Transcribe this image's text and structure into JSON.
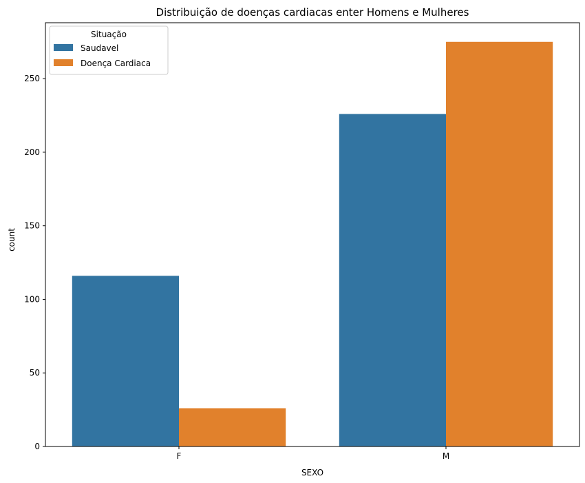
{
  "chart_data": {
    "type": "bar",
    "title": "Distribuição de doenças cardiacas enter Homens e Mulheres",
    "xlabel": "SEXO",
    "ylabel": "count",
    "categories": [
      "F",
      "M"
    ],
    "series": [
      {
        "name": "Saudavel",
        "values": [
          116,
          226
        ],
        "color": "#3274a1"
      },
      {
        "name": "Doença Cardiaca",
        "values": [
          26,
          275
        ],
        "color": "#e1812c"
      }
    ],
    "ylim": [
      0,
      288
    ],
    "yticks": [
      0,
      50,
      100,
      150,
      200,
      250
    ],
    "grid": false,
    "legend": {
      "title": "Situação",
      "placement": "top-left"
    }
  }
}
